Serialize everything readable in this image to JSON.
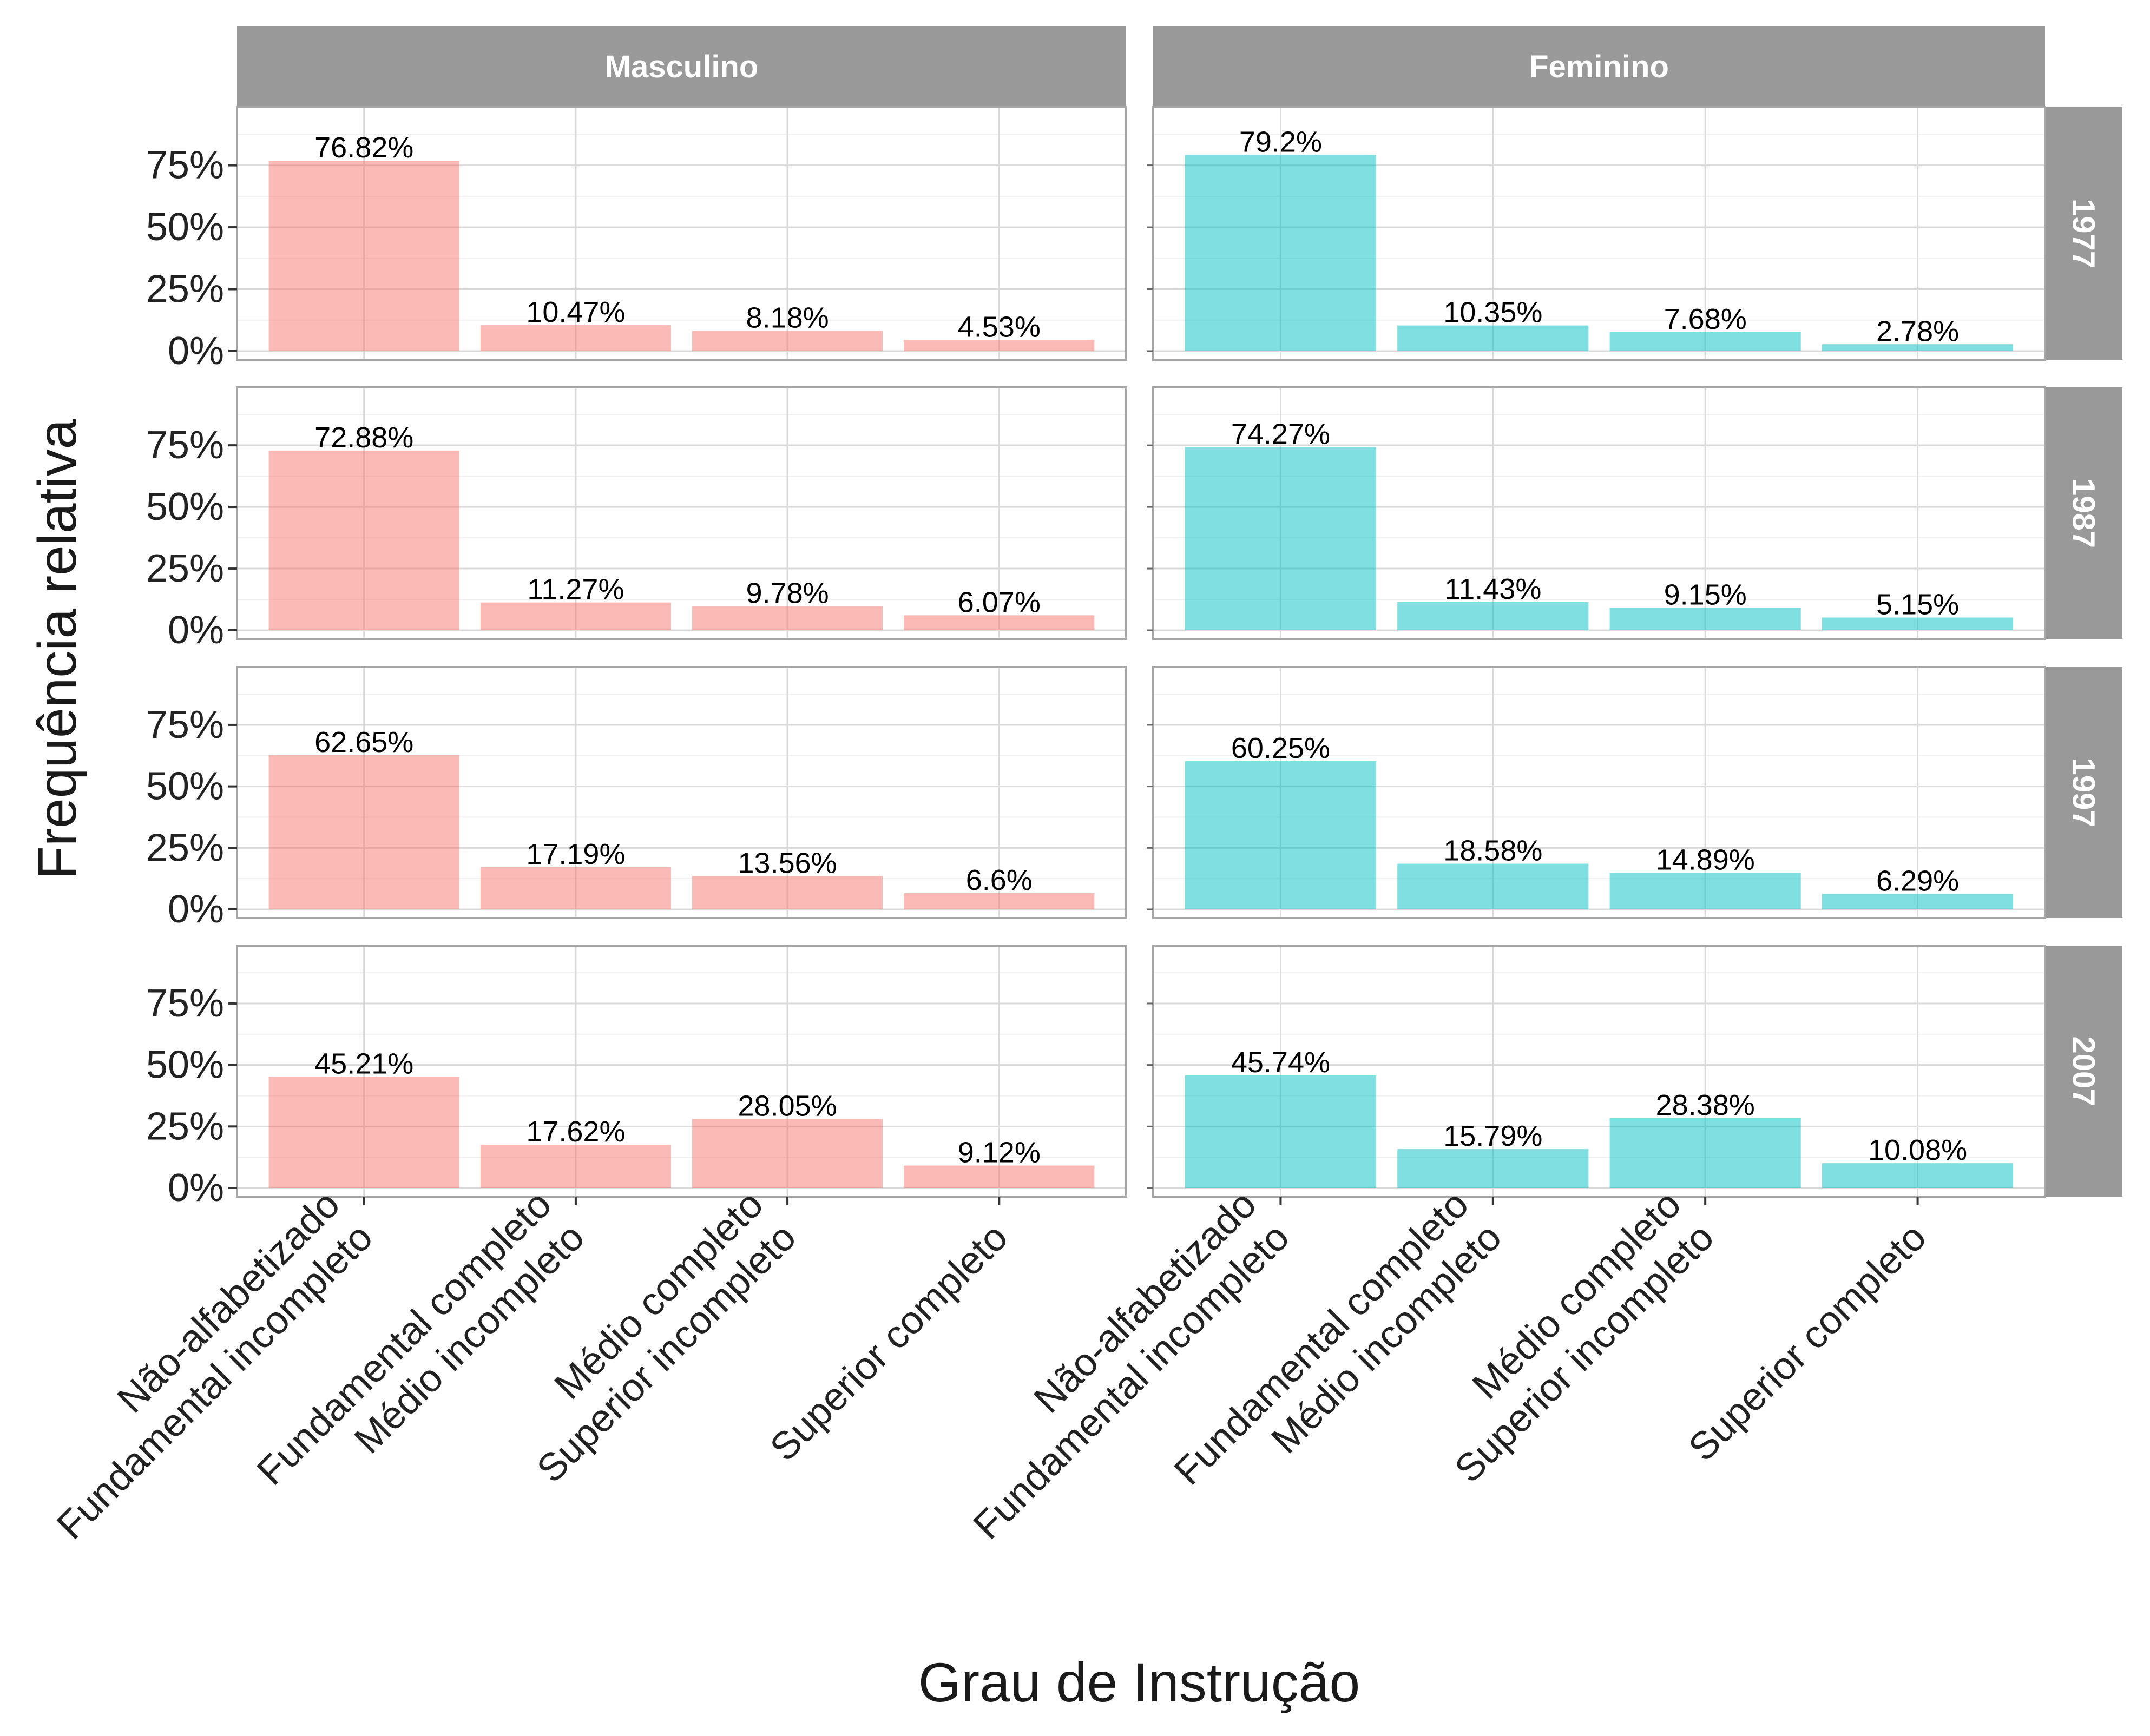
{
  "chart_data": {
    "type": "bar",
    "title": "",
    "xlabel": "Grau de Instrução",
    "ylabel": "Frequência relativa",
    "ylim": [
      0,
      0.95
    ],
    "y_ticks": [
      0,
      0.25,
      0.5,
      0.75
    ],
    "y_tick_labels": [
      "0%",
      "25%",
      "50%",
      "75%"
    ],
    "grid": true,
    "legend": "none",
    "categories": [
      [
        "Não-alfabetizado",
        "Fundamental incompleto"
      ],
      [
        "Fundamental completo",
        "Médio incompleto"
      ],
      [
        "Médio completo",
        "Superior incompleto"
      ],
      [
        "Superior completo"
      ]
    ],
    "facet_columns": [
      "Masculino",
      "Feminino"
    ],
    "facet_rows": [
      "1977",
      "1987",
      "1997",
      "2007"
    ],
    "colors": {
      "Masculino": "#F8766D",
      "Feminino": "#00BFC4"
    },
    "panels": [
      {
        "row": "1977",
        "col": "Masculino",
        "values": [
          0.7682,
          0.1047,
          0.0818,
          0.0453
        ],
        "labels": [
          "76.82%",
          "10.47%",
          "8.18%",
          "4.53%"
        ]
      },
      {
        "row": "1977",
        "col": "Feminino",
        "values": [
          0.792,
          0.1035,
          0.0768,
          0.0278
        ],
        "labels": [
          "79.2%",
          "10.35%",
          "7.68%",
          "2.78%"
        ]
      },
      {
        "row": "1987",
        "col": "Masculino",
        "values": [
          0.7288,
          0.1127,
          0.0978,
          0.0607
        ],
        "labels": [
          "72.88%",
          "11.27%",
          "9.78%",
          "6.07%"
        ]
      },
      {
        "row": "1987",
        "col": "Feminino",
        "values": [
          0.7427,
          0.1143,
          0.0915,
          0.0515
        ],
        "labels": [
          "74.27%",
          "11.43%",
          "9.15%",
          "5.15%"
        ]
      },
      {
        "row": "1997",
        "col": "Masculino",
        "values": [
          0.6265,
          0.1719,
          0.1356,
          0.066
        ],
        "labels": [
          "62.65%",
          "17.19%",
          "13.56%",
          "6.6%"
        ]
      },
      {
        "row": "1997",
        "col": "Feminino",
        "values": [
          0.6025,
          0.1858,
          0.1489,
          0.0629
        ],
        "labels": [
          "60.25%",
          "18.58%",
          "14.89%",
          "6.29%"
        ]
      },
      {
        "row": "2007",
        "col": "Masculino",
        "values": [
          0.4521,
          0.1762,
          0.2805,
          0.0912
        ],
        "labels": [
          "45.21%",
          "17.62%",
          "28.05%",
          "9.12%"
        ]
      },
      {
        "row": "2007",
        "col": "Feminino",
        "values": [
          0.4574,
          0.1579,
          0.2838,
          0.1008
        ],
        "labels": [
          "45.74%",
          "15.79%",
          "28.38%",
          "10.08%"
        ]
      }
    ]
  }
}
